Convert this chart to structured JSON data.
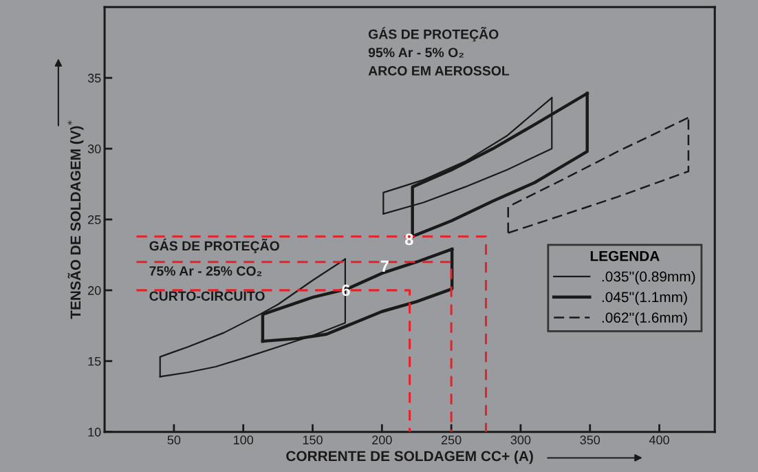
{
  "chart_data": {
    "type": "line",
    "xlabel": "CORRENTE DE SOLDAGEM CC+ (A)",
    "ylabel": "TENSÃO DE SOLDAGEM (V)$^{*}$",
    "legend_title": "LEGENDA",
    "legend": "lower right",
    "grid": false,
    "xlim": [
      0,
      440
    ],
    "ylim": [
      10,
      40
    ],
    "xticks": [
      50,
      100,
      150,
      200,
      250,
      300,
      350,
      400
    ],
    "yticks": [
      10,
      15,
      20,
      25,
      30,
      35
    ],
    "series": [
      {
        "name": ".035''(0.89mm)",
        "color": "#1a1a1a",
        "line_style": "solid",
        "x": [
          40,
          60,
          80,
          100,
          125,
          150,
          173.5,
          173.5
        ],
        "values": [
          13.9,
          14.2,
          14.6,
          15.2,
          16.0,
          16.8,
          17.7,
          22.2
        ]
      },
      {
        "name": ".045''(1.1mm)",
        "color": "#1a1a1a",
        "line_style": "solid",
        "x": [
          114,
          140,
          160,
          175,
          200,
          225,
          250.5,
          250.5
        ],
        "values": [
          16.4,
          16.6,
          16.9,
          17.5,
          18.5,
          19.2,
          20.1,
          22.9
        ]
      },
      {
        "name": ".062''(1.6mm)",
        "color": "#1a1a1a",
        "line_style": "dashed",
        "x": [
          291,
          330,
          370,
          421,
          421
        ],
        "values": [
          24.05,
          25.3,
          26.6,
          28.4,
          32.2
        ]
      },
      {
        "color": "#1a1a1a",
        "line_style": "solid",
        "x": [
          201,
          230,
          260,
          290,
          322.5,
          322.5
        ],
        "values": [
          25.4,
          26.2,
          27.3,
          28.5,
          30.0,
          33.6
        ]
      },
      {
        "color": "#1a1a1a",
        "line_style": "solid",
        "x": [
          222,
          250,
          280,
          310,
          348,
          348
        ],
        "values": [
          23.8,
          24.9,
          26.3,
          27.6,
          29.8,
          33.9
        ]
      },
      {
        "color": "#1a1a1a",
        "line_style": "solid",
        "x": [
          40,
          40,
          60,
          86,
          112,
          125,
          150,
          173.5
        ],
        "values": [
          13.9,
          15.3,
          16.0,
          17.0,
          18.3,
          19.0,
          20.7,
          22.2
        ]
      },
      {
        "color": "#1a1a1a",
        "line_style": "solid",
        "x": [
          114,
          114,
          150,
          175,
          200,
          225,
          250.5
        ],
        "values": [
          16.4,
          18.3,
          19.5,
          20.1,
          21.2,
          22.0,
          22.9
        ]
      },
      {
        "color": "#1a1a1a",
        "line_style": "dashed",
        "x": [
          291,
          291,
          330,
          370,
          421
        ],
        "values": [
          24.05,
          25.9,
          27.8,
          29.8,
          32.2
        ]
      },
      {
        "color": "#1a1a1a",
        "line_style": "solid",
        "x": [
          201,
          201,
          230,
          260,
          290,
          322.5
        ],
        "values": [
          25.4,
          26.9,
          27.8,
          29.1,
          30.9,
          33.6
        ]
      },
      {
        "color": "#1a1a1a",
        "line_style": "solid",
        "x": [
          222,
          222,
          250,
          280,
          310,
          348
        ],
        "values": [
          23.8,
          27.3,
          28.5,
          30.0,
          31.7,
          33.9
        ]
      },
      {
        "color": "#e8202a",
        "line_style": "dashed",
        "x": [
          23,
          220,
          220
        ],
        "values": [
          20,
          20,
          10
        ]
      },
      {
        "color": "#e8202a",
        "line_style": "dashed",
        "x": [
          23,
          250,
          250
        ],
        "values": [
          22,
          22,
          10
        ]
      },
      {
        "color": "#e8202a",
        "line_style": "dashed",
        "x": [
          23,
          275,
          275
        ],
        "values": [
          23.8,
          23.8,
          10
        ]
      }
    ],
    "annotations": [
      "GÁS DE PROTEÇÃO\n95% Ar - 5% O₂\nARCO EM AEROSSOL",
      "GÁS DE PROTEÇÃO\n75% Ar - 25% CO₂\nCURTO-CIRCUITO",
      "6",
      "7",
      "8"
    ]
  }
}
